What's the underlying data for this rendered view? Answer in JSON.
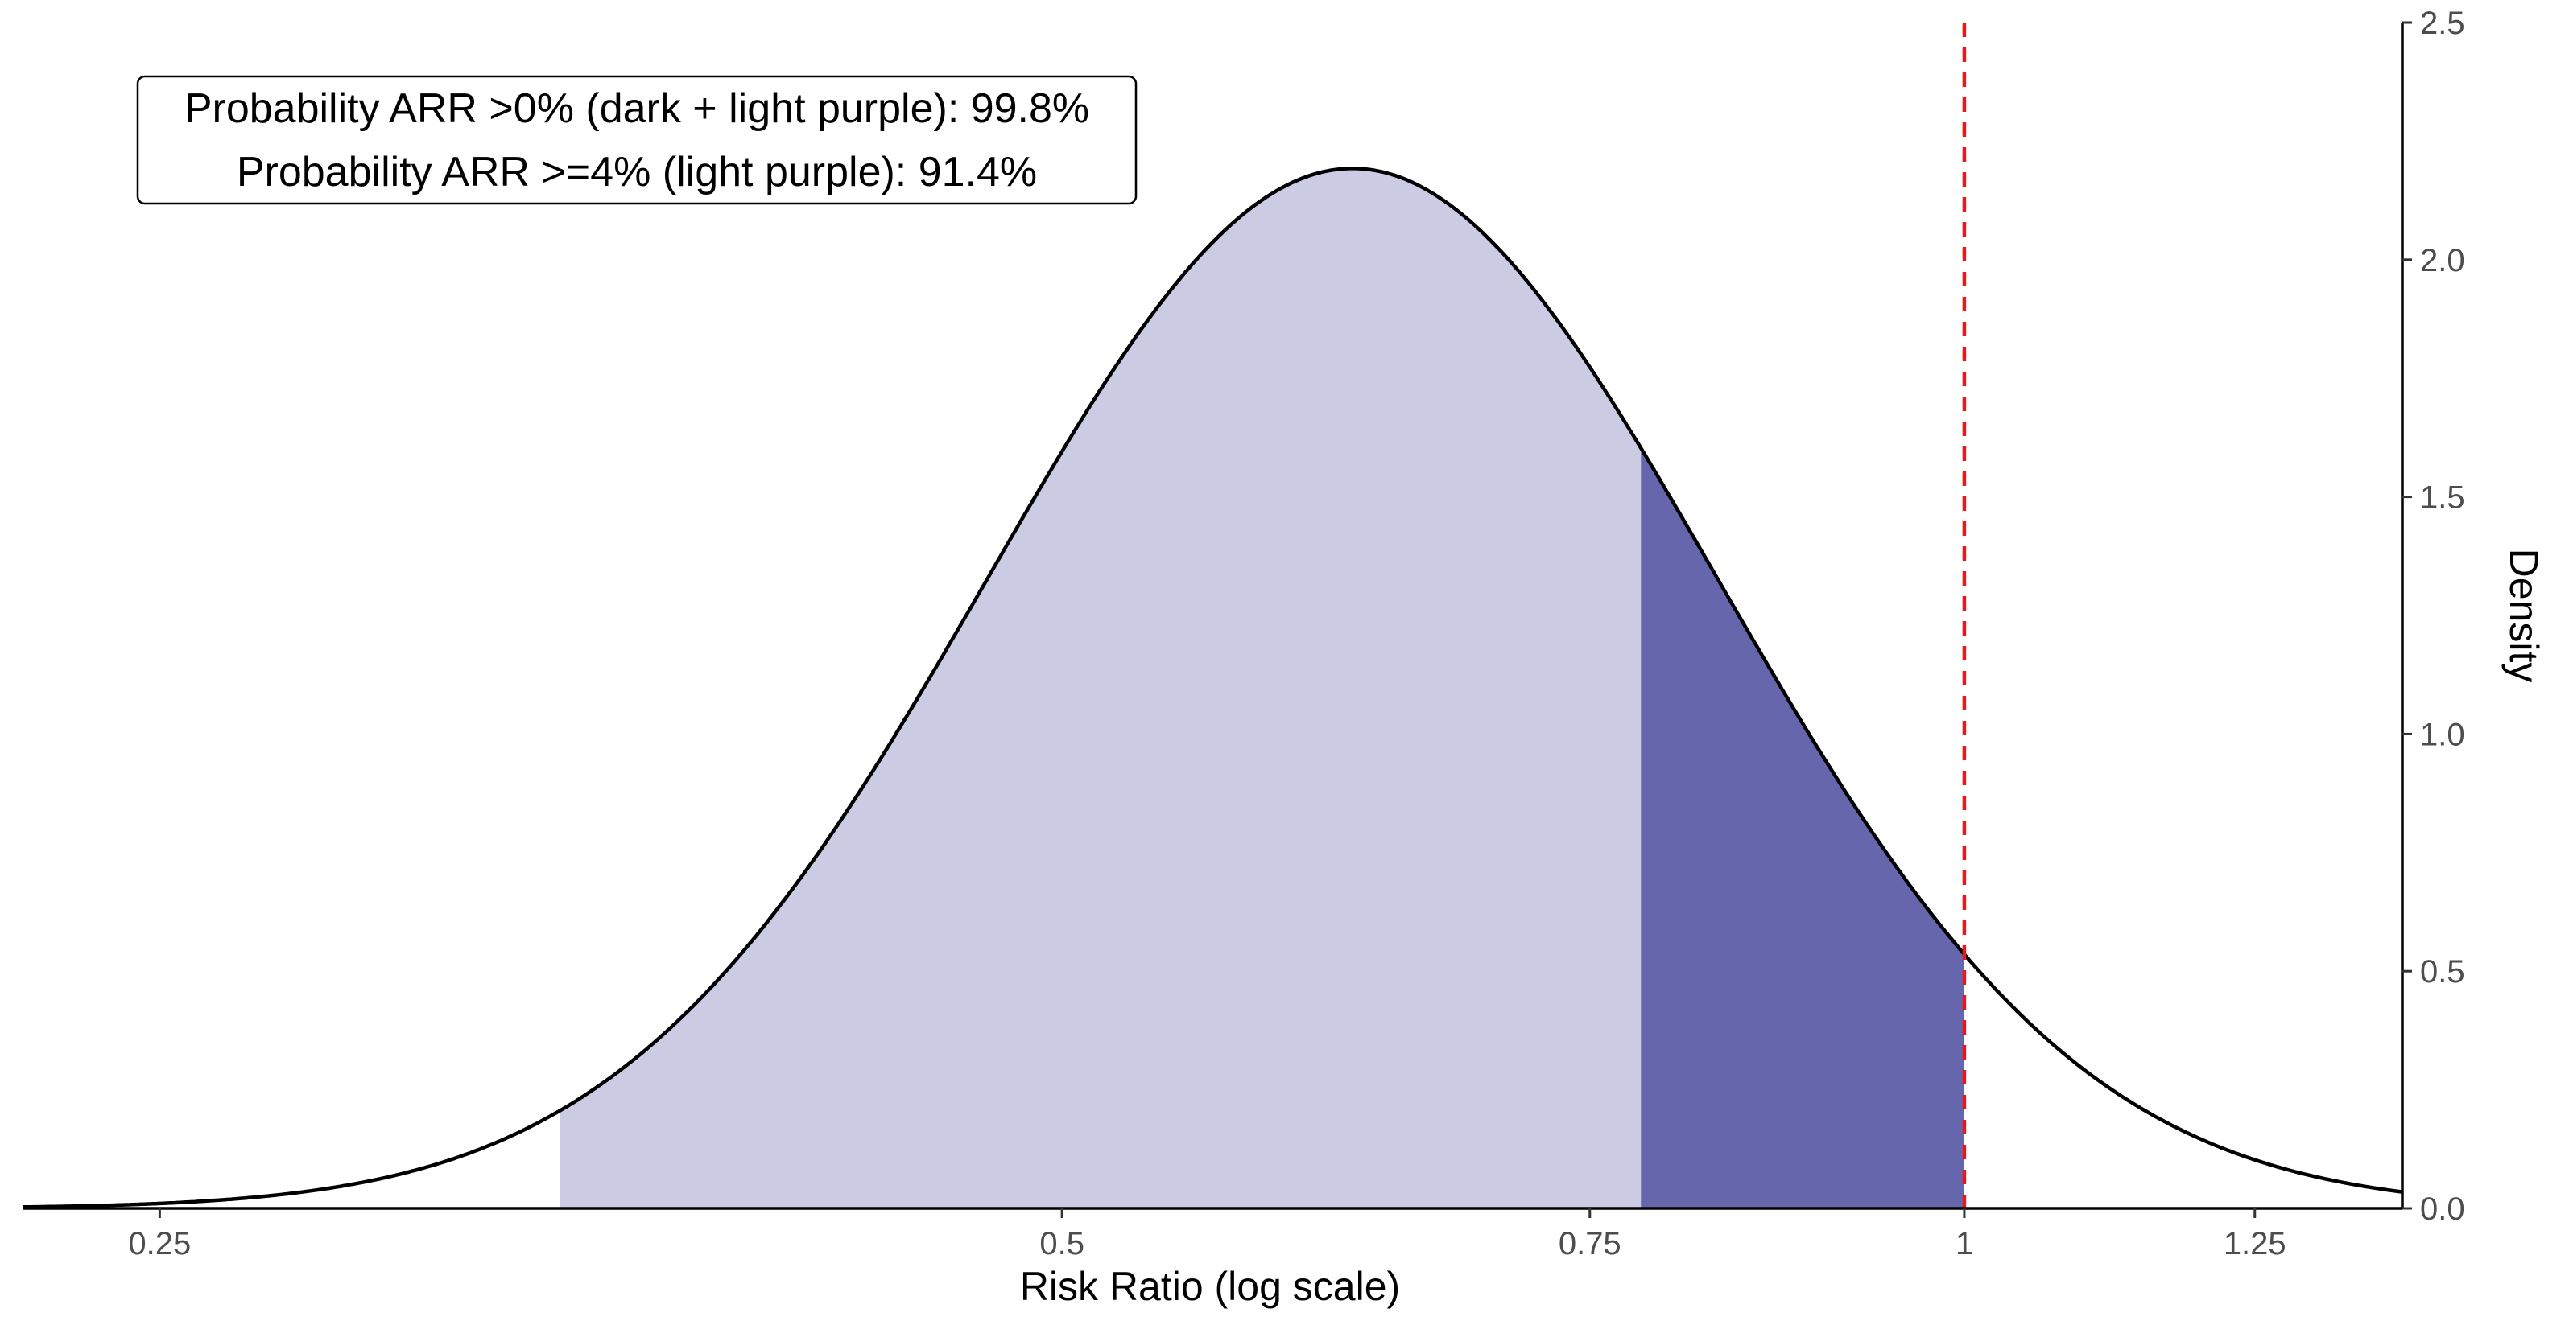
{
  "chart_data": {
    "type": "area",
    "xlabel": "Risk Ratio (log scale)",
    "ylabel": "Density",
    "x_scale": "log",
    "x_ticks": [
      0.25,
      0.5,
      0.75,
      1,
      1.25
    ],
    "x_tick_labels": [
      "0.25",
      "0.5",
      "0.75",
      "1",
      "1.25"
    ],
    "xlim": [
      0.225,
      1.4
    ],
    "y_ticks": [
      0,
      0.5,
      1,
      1.5,
      2,
      2.5
    ],
    "y_tick_labels": [
      "0.0",
      "0.5",
      "1.0",
      "1.5",
      "2.0",
      "2.5"
    ],
    "ylim": [
      0,
      2.5
    ],
    "y_axis_position": "right",
    "grid": false,
    "distribution": {
      "kind": "log-normal density of risk ratio",
      "mode": 0.625,
      "peak_density": 2.28
    },
    "threshold_arr4": 0.78,
    "reference_line": {
      "x": 1,
      "style": "dashed",
      "color": "#e41a1c"
    },
    "colors": {
      "light_purple": "#cbcbe4",
      "dark_purple": "#6666ad",
      "curve": "#000000"
    },
    "annotation": {
      "line1": "Probability ARR >0% (dark + light purple): 99.8%",
      "line2": "Probability ARR >=4% (light purple): 91.4%",
      "position": "top-left"
    }
  }
}
